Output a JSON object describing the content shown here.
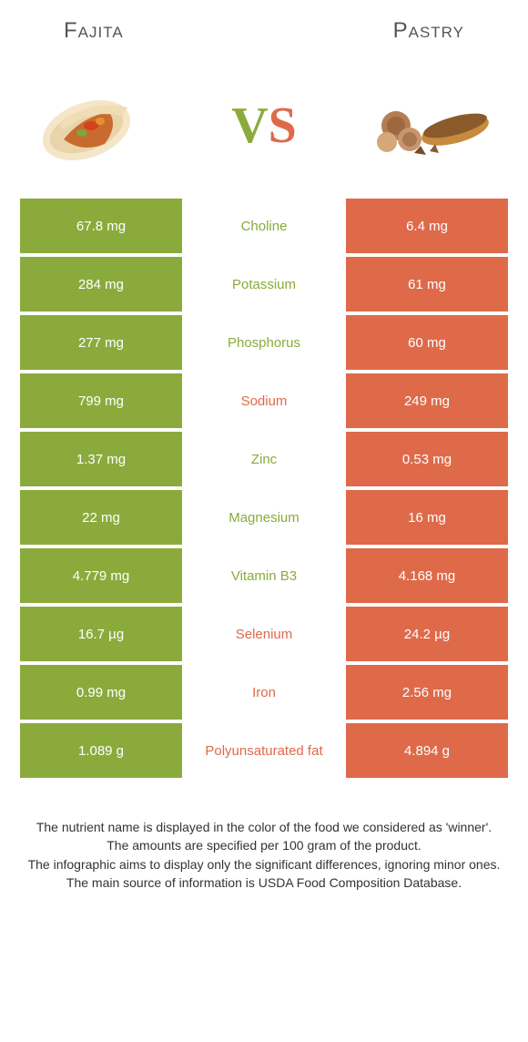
{
  "colors": {
    "left": "#8aab3c",
    "right": "#de6a4a",
    "mid_left_text": "#8aab3c",
    "mid_right_text": "#de6a4a"
  },
  "header": {
    "left": "Fajita",
    "right": "Pastry"
  },
  "vs": {
    "v": "V",
    "s": "S"
  },
  "rows": [
    {
      "left": "67.8 mg",
      "mid": "Choline",
      "right": "6.4 mg",
      "winner": "left"
    },
    {
      "left": "284 mg",
      "mid": "Potassium",
      "right": "61 mg",
      "winner": "left"
    },
    {
      "left": "277 mg",
      "mid": "Phosphorus",
      "right": "60 mg",
      "winner": "left"
    },
    {
      "left": "799 mg",
      "mid": "Sodium",
      "right": "249 mg",
      "winner": "right"
    },
    {
      "left": "1.37 mg",
      "mid": "Zinc",
      "right": "0.53 mg",
      "winner": "left"
    },
    {
      "left": "22 mg",
      "mid": "Magnesium",
      "right": "16 mg",
      "winner": "left"
    },
    {
      "left": "4.779 mg",
      "mid": "Vitamin B3",
      "right": "4.168 mg",
      "winner": "left"
    },
    {
      "left": "16.7 µg",
      "mid": "Selenium",
      "right": "24.2 µg",
      "winner": "right"
    },
    {
      "left": "0.99 mg",
      "mid": "Iron",
      "right": "2.56 mg",
      "winner": "right"
    },
    {
      "left": "1.089 g",
      "mid": "Polyunsaturated fat",
      "right": "4.894 g",
      "winner": "right"
    }
  ],
  "footer": {
    "line1": "The nutrient name is displayed in the color of the food we considered as 'winner'.",
    "line2": "The amounts are specified per 100 gram of the product.",
    "line3": "The infographic aims to display only the significant differences, ignoring minor ones.",
    "line4": "The main source of information is USDA Food Composition Database."
  }
}
